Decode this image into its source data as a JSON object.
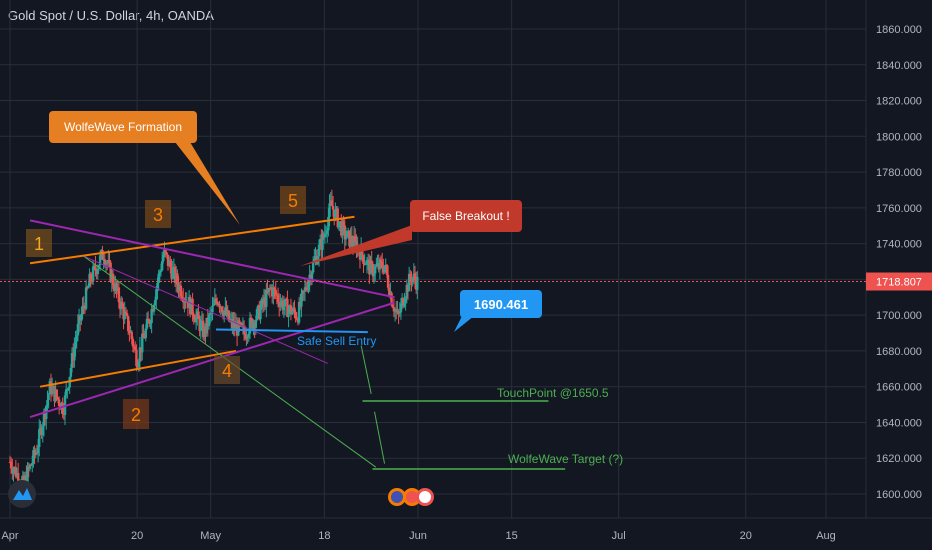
{
  "header": {
    "title": "Gold Spot / U.S. Dollar, 4h, OANDA"
  },
  "chart_data": {
    "type": "candlestick",
    "symbol": "Gold Spot / U.S. Dollar",
    "interval": "4h",
    "source": "OANDA",
    "ylim": [
      1588,
      1872
    ],
    "y_ticks": [
      1600,
      1620,
      1640,
      1660,
      1680,
      1700,
      1720,
      1740,
      1760,
      1780,
      1800,
      1820,
      1840,
      1860
    ],
    "y_tick_labels": [
      "1600.000",
      "1620.000",
      "1640.000",
      "1660.000",
      "1680.000",
      "1700.000",
      "1720.000",
      "1740.000",
      "1760.000",
      "1780.000",
      "1800.000",
      "1820.000",
      "1840.000",
      "1860.000"
    ],
    "x_range_days": [
      0,
      154
    ],
    "x_ticks": [
      {
        "label": "Apr",
        "day": 0
      },
      {
        "label": "20",
        "day": 19
      },
      {
        "label": "May",
        "day": 30
      },
      {
        "label": "18",
        "day": 47
      },
      {
        "label": "Jun",
        "day": 61
      },
      {
        "label": "15",
        "day": 75
      },
      {
        "label": "Jul",
        "day": 91
      },
      {
        "label": "20",
        "day": 110
      },
      {
        "label": "Aug",
        "day": 122
      }
    ],
    "last_price": "1718.807",
    "last_price_value": 1718.807,
    "price_path": [
      [
        0,
        1618
      ],
      [
        2,
        1605
      ],
      [
        4,
        1625
      ],
      [
        6,
        1660
      ],
      [
        8,
        1648
      ],
      [
        10,
        1690
      ],
      [
        12,
        1720
      ],
      [
        14,
        1735
      ],
      [
        16,
        1712
      ],
      [
        18,
        1690
      ],
      [
        19,
        1675
      ],
      [
        21,
        1700
      ],
      [
        23,
        1735
      ],
      [
        25,
        1718
      ],
      [
        27,
        1705
      ],
      [
        29,
        1690
      ],
      [
        31,
        1710
      ],
      [
        33,
        1695
      ],
      [
        35,
        1690
      ],
      [
        37,
        1700
      ],
      [
        39,
        1715
      ],
      [
        41,
        1705
      ],
      [
        43,
        1700
      ],
      [
        45,
        1725
      ],
      [
        47,
        1745
      ],
      [
        48,
        1762
      ],
      [
        50,
        1745
      ],
      [
        52,
        1738
      ],
      [
        54,
        1725
      ],
      [
        56,
        1728
      ],
      [
        57,
        1710
      ],
      [
        58,
        1698
      ],
      [
        59,
        1712
      ],
      [
        60,
        1722
      ],
      [
        61,
        1718
      ]
    ],
    "annotations": {
      "wave_points": [
        "1",
        "2",
        "3",
        "4",
        "5"
      ],
      "callouts": [
        "WolfeWave Formation",
        "False Breakout !",
        "1690.461"
      ],
      "levels": [
        "Safe Sell Entry",
        "TouchPoint @1650.5",
        "WolfeWave Target (?)"
      ]
    }
  },
  "colors": {
    "background": "#131722",
    "grid": "#2a2e39",
    "up_candle": "#26a69a",
    "down_candle": "#ef5350",
    "orange": "#f57c00",
    "purple": "#9c27b0",
    "blue": "#2196f3",
    "green": "#4caf50",
    "red_callout": "#c62828",
    "last_price_tag": "#ef5350"
  }
}
